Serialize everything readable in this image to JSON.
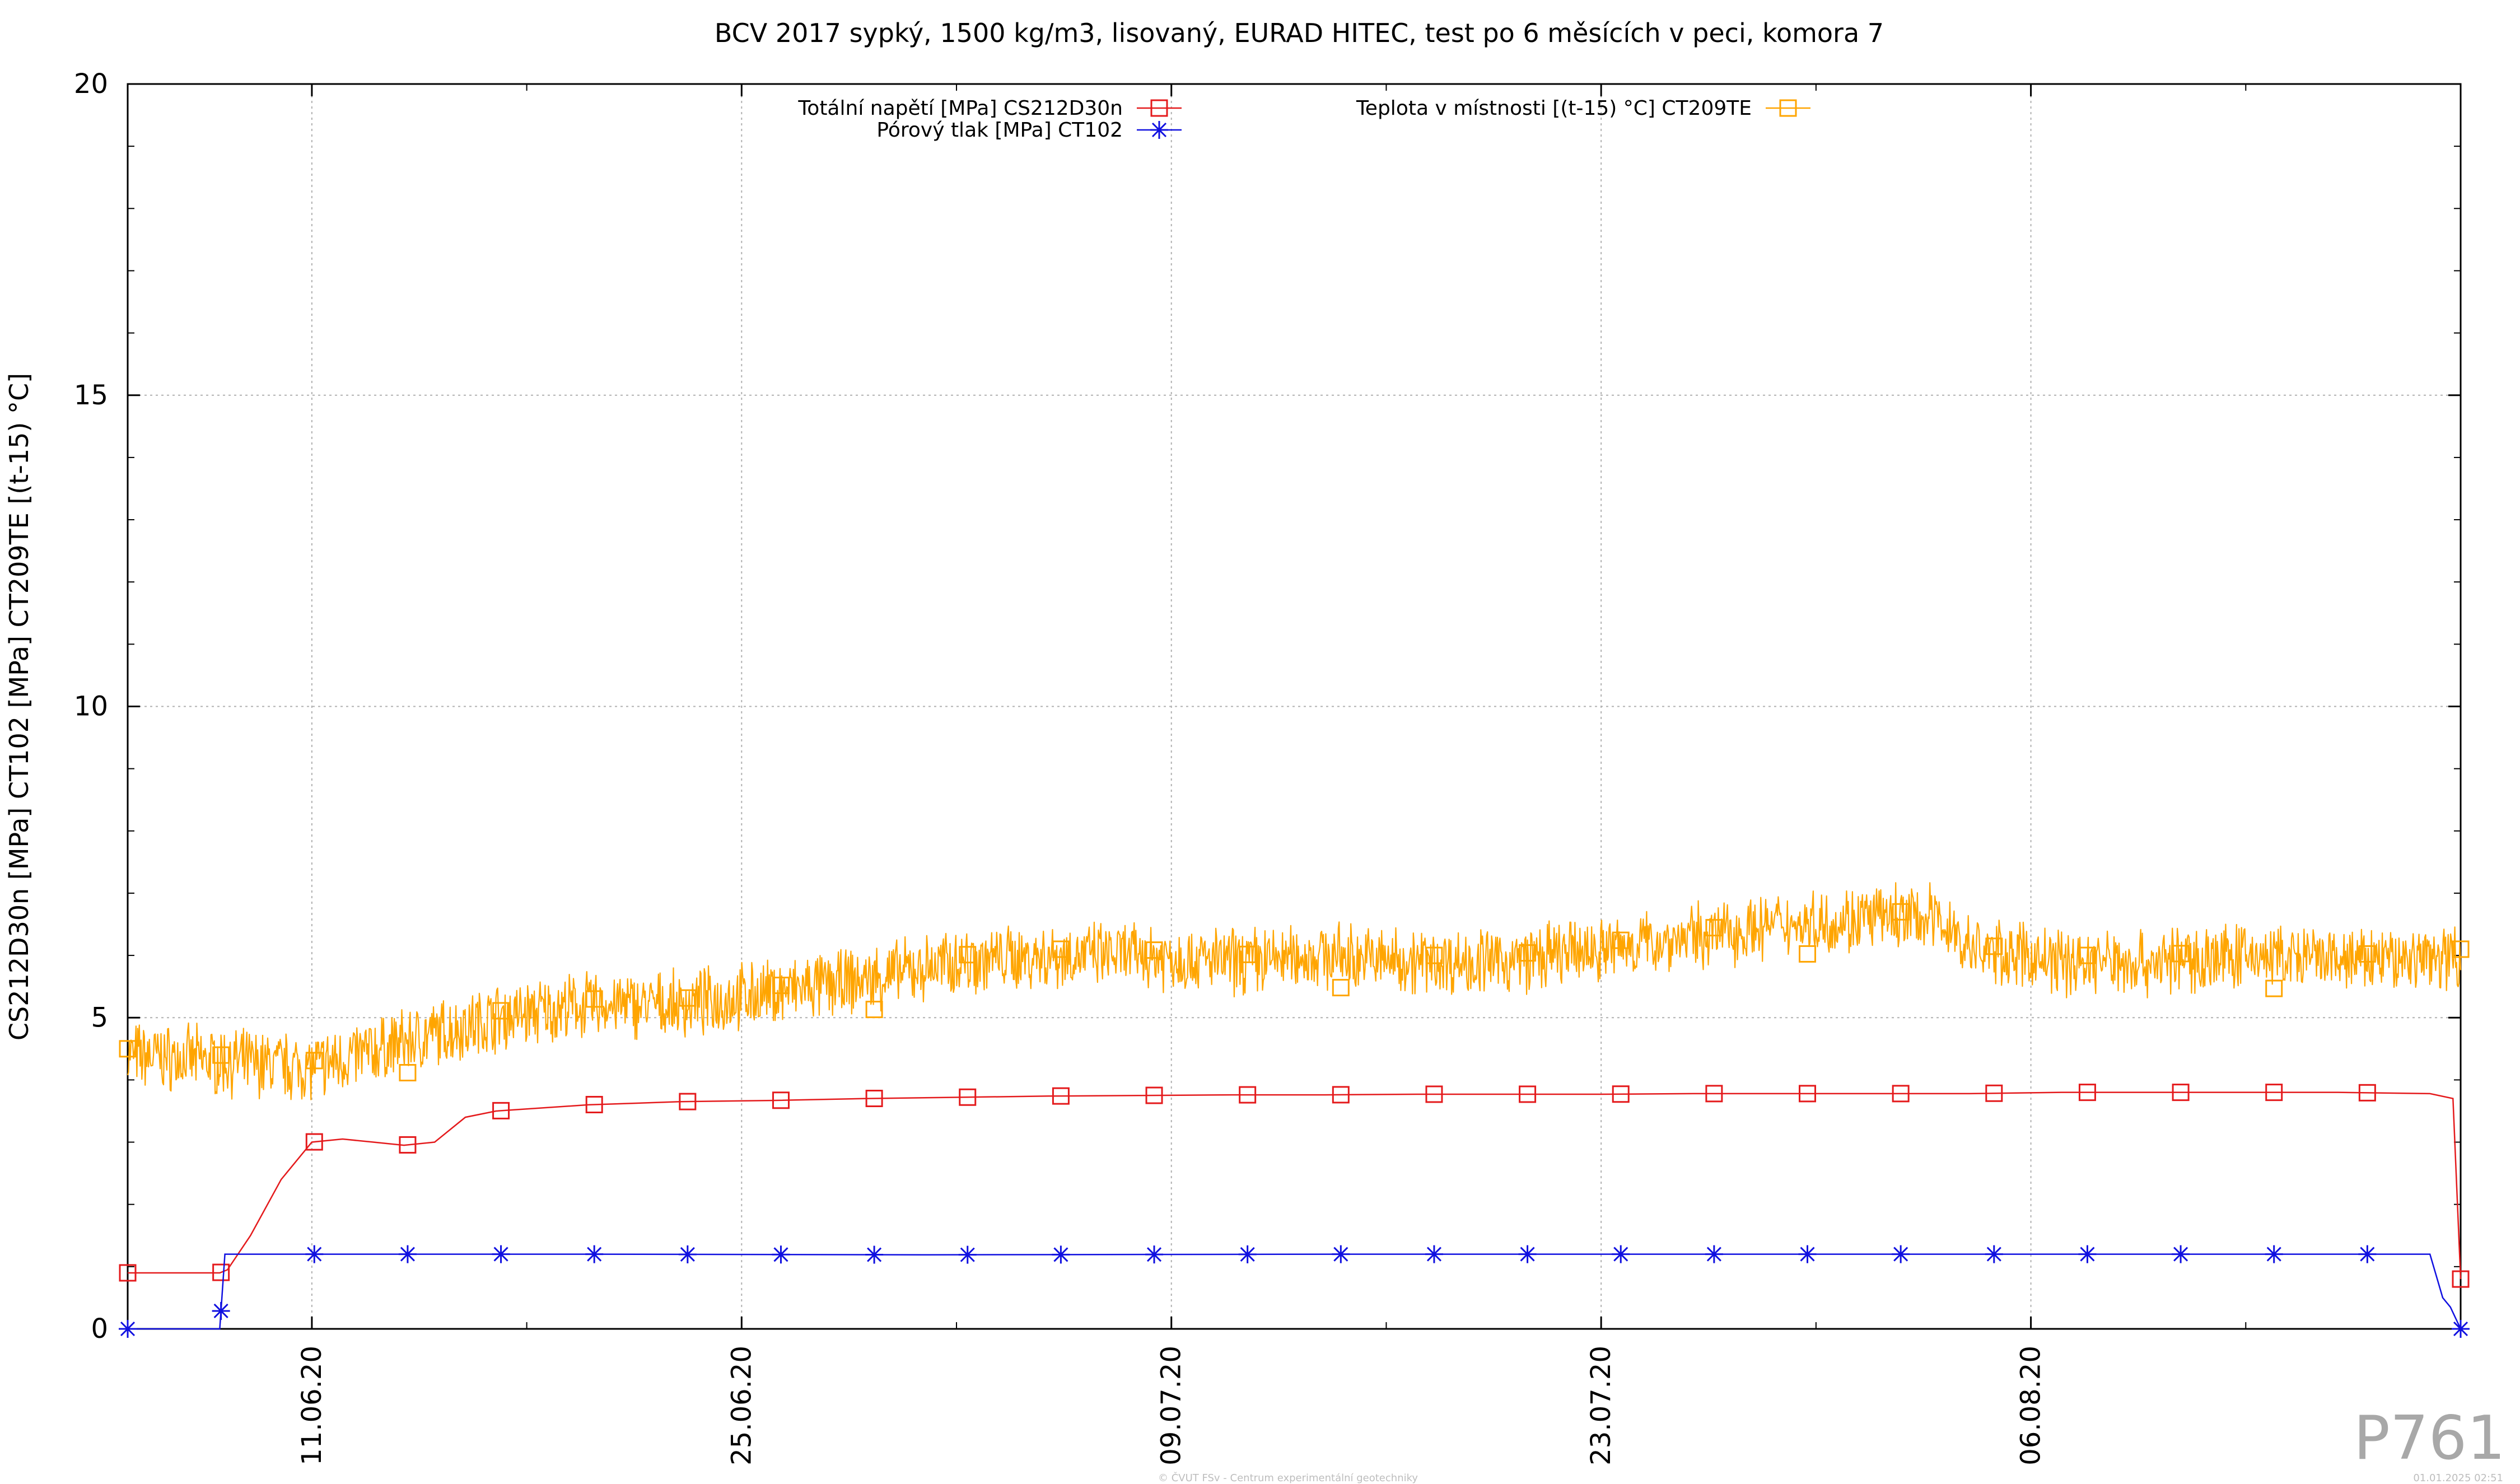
{
  "chart_data": {
    "type": "line",
    "title": "BCV 2017 sypký, 1500 kg/m3, lisovaný, EURAD HITEC, test po 6 měsících v peci, komora 7",
    "ylabel": "CS212D30n [MPa] CT102 [MPa] CT209TE [(t-15) °C]",
    "xlabel": "",
    "ylim": [
      0,
      20
    ],
    "xlim": [
      "2020-06-05",
      "2020-08-20"
    ],
    "yticks": [
      "0",
      "5",
      "10",
      "15",
      "20"
    ],
    "xticks": [
      "11.06.20",
      "25.06.20",
      "09.07.20",
      "23.07.20",
      "06.08.20"
    ],
    "grid": true,
    "legend_position": "top",
    "series": [
      {
        "name": "Totální napětí [MPa] CS212D30n",
        "color": "#e41a1c",
        "marker": "square",
        "x": [
          "2020-06-05",
          "2020-06-08",
          "2020-06-08T06:00",
          "2020-06-09",
          "2020-06-10",
          "2020-06-11",
          "2020-06-12",
          "2020-06-13",
          "2020-06-14",
          "2020-06-15",
          "2020-06-16",
          "2020-06-17",
          "2020-06-20",
          "2020-06-23",
          "2020-06-26",
          "2020-06-29",
          "2020-07-02",
          "2020-07-05",
          "2020-07-08",
          "2020-07-11",
          "2020-07-14",
          "2020-07-17",
          "2020-07-20",
          "2020-07-23",
          "2020-07-26",
          "2020-07-29",
          "2020-08-01",
          "2020-08-04",
          "2020-08-07",
          "2020-08-10",
          "2020-08-13",
          "2020-08-16",
          "2020-08-19",
          "2020-08-19T18:00",
          "2020-08-20"
        ],
        "y": [
          0.9,
          0.9,
          0.95,
          1.5,
          2.4,
          3.0,
          3.05,
          3.0,
          2.95,
          3.0,
          3.4,
          3.5,
          3.6,
          3.65,
          3.67,
          3.7,
          3.72,
          3.74,
          3.75,
          3.76,
          3.76,
          3.77,
          3.77,
          3.77,
          3.78,
          3.78,
          3.78,
          3.78,
          3.8,
          3.8,
          3.8,
          3.8,
          3.78,
          3.7,
          0.8
        ]
      },
      {
        "name": "Pórový tlak [MPa] CT102",
        "color": "#1010e0",
        "marker": "asterisk",
        "x": [
          "2020-06-05",
          "2020-06-08",
          "2020-06-08T04:00",
          "2020-06-08T05:00",
          "2020-06-11",
          "2020-06-20",
          "2020-07-01",
          "2020-07-15",
          "2020-07-29",
          "2020-08-10",
          "2020-08-19",
          "2020-08-19T10:00",
          "2020-08-19T16:00",
          "2020-08-20"
        ],
        "y": [
          0,
          0,
          1.2,
          1.2,
          1.2,
          1.2,
          1.19,
          1.2,
          1.2,
          1.2,
          1.2,
          0.5,
          0.35,
          0
        ]
      },
      {
        "name": "Teplota v místnosti [(t-15) °C] CT209TE",
        "color": "#ffa500",
        "marker": "square",
        "x": [
          "2020-06-05",
          "2020-06-08",
          "2020-06-11",
          "2020-06-14",
          "2020-06-17",
          "2020-06-20",
          "2020-06-23",
          "2020-06-26",
          "2020-06-29",
          "2020-07-02",
          "2020-07-05",
          "2020-07-08",
          "2020-07-11",
          "2020-07-14",
          "2020-07-17",
          "2020-07-20",
          "2020-07-23",
          "2020-07-26",
          "2020-07-29",
          "2020-08-01",
          "2020-08-03",
          "2020-08-04",
          "2020-08-07",
          "2020-08-10",
          "2020-08-13",
          "2020-08-16",
          "2020-08-20"
        ],
        "y": [
          4.4,
          4.3,
          4.2,
          4.6,
          5.0,
          5.2,
          5.2,
          5.4,
          5.6,
          5.9,
          6.0,
          6.0,
          5.9,
          6.0,
          5.9,
          5.9,
          6.1,
          6.3,
          6.5,
          6.6,
          6.6,
          6.1,
          5.9,
          5.9,
          6.0,
          5.9,
          6.0
        ]
      }
    ]
  },
  "watermark": "P761",
  "footer": {
    "copyright": "© ČVUT FSv - Centrum experimentální geotechniky",
    "timestamp": "01.01.2025 02:51"
  }
}
